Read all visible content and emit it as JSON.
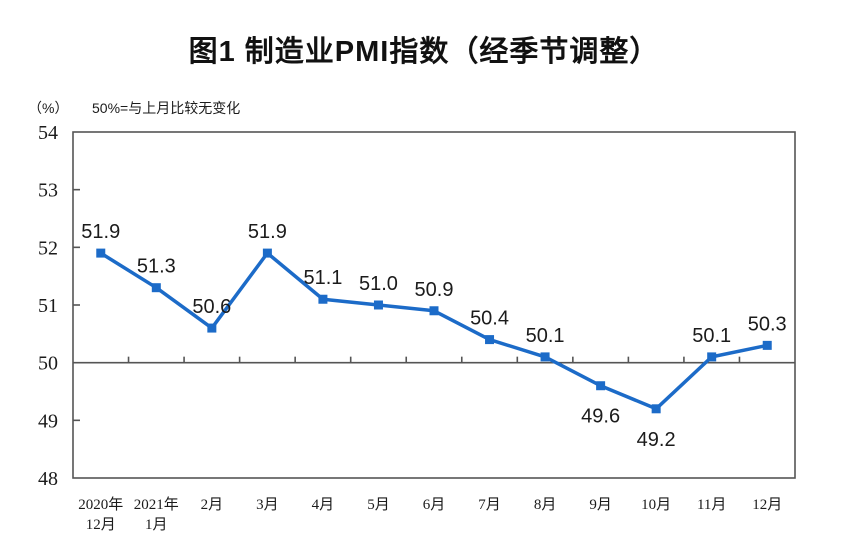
{
  "figure": {
    "title": "图1 制造业PMI指数（经季节调整）",
    "unit_label": "（%）",
    "note": "50%=与上月比较无变化"
  },
  "colors": {
    "line": "#1C6BC8",
    "axis": "#555555",
    "text": "#1B1B1B"
  },
  "chart_data": {
    "type": "line",
    "title": "图1 制造业PMI指数（经季节调整）",
    "unit_label": "（%）",
    "annotation": "50%=与上月比较无变化",
    "categories": [
      "2020年\n12月",
      "2021年\n1月",
      "2月",
      "3月",
      "4月",
      "5月",
      "6月",
      "7月",
      "8月",
      "9月",
      "10月",
      "11月",
      "12月"
    ],
    "values": [
      51.9,
      51.3,
      50.6,
      51.9,
      51.1,
      51.0,
      50.9,
      50.4,
      50.1,
      49.6,
      49.2,
      50.1,
      50.3
    ],
    "data_labels": [
      "51.9",
      "51.3",
      "50.6",
      "51.9",
      "51.1",
      "51.0",
      "50.9",
      "50.4",
      "50.1",
      "49.6",
      "49.2",
      "50.1",
      "50.3"
    ],
    "data_label_positions": [
      "above",
      "above",
      "above",
      "above",
      "above",
      "above",
      "above",
      "above",
      "above",
      "below",
      "below",
      "above",
      "above"
    ],
    "ylim": [
      48,
      54
    ],
    "yticks": [
      48,
      49,
      50,
      51,
      52,
      53,
      54
    ],
    "reference_line": 50,
    "grid": false,
    "legend": false,
    "marker": "square"
  }
}
